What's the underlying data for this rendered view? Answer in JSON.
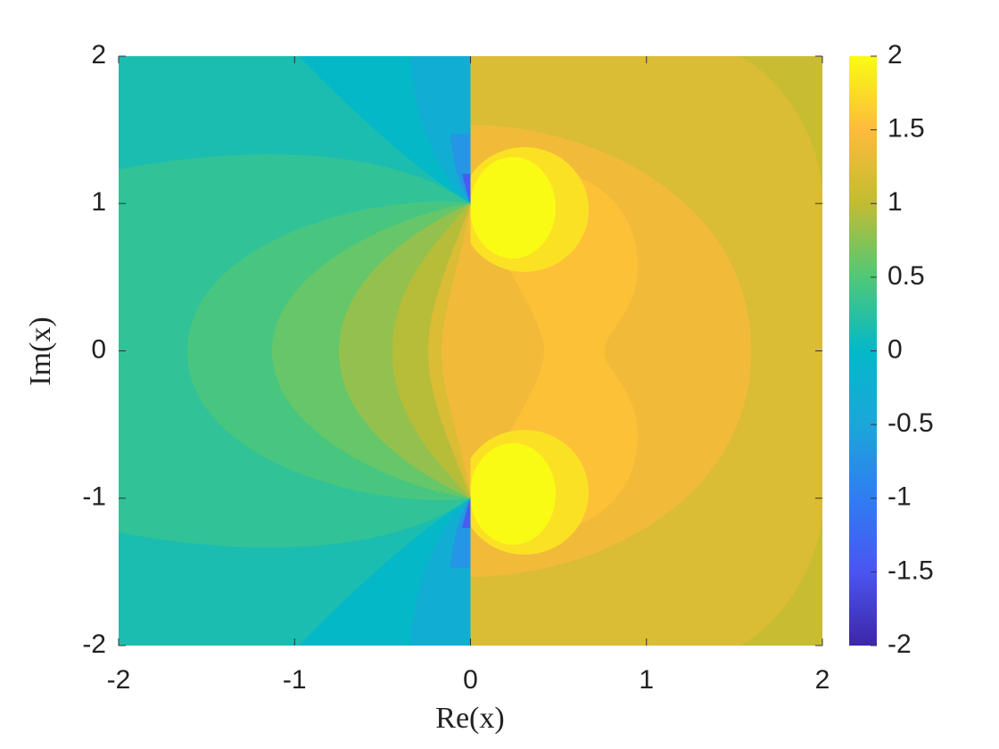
{
  "chart_data": {
    "type": "contourf",
    "xlabel": "Re(x)",
    "ylabel": "Im(x)",
    "xlim": [
      -2,
      2
    ],
    "ylim": [
      -2,
      2
    ],
    "xticks": [
      -2,
      -1,
      0,
      1,
      2
    ],
    "yticks": [
      -2,
      -1,
      0,
      1,
      2
    ],
    "clim": [
      -2,
      2
    ],
    "cticks": [
      -2,
      -1.5,
      -1,
      -0.5,
      0,
      0.5,
      1,
      1.5,
      2
    ],
    "colormap": [
      "#3e26a8",
      "#4a55f0",
      "#2f7df2",
      "#1ca6da",
      "#04b8c8",
      "#4fc878",
      "#c2bc31",
      "#fdbb3b",
      "#f9fb14"
    ],
    "levels": [
      -1.4,
      -0.7,
      -0.3,
      0,
      0.15,
      0.3,
      0.45,
      0.6,
      0.8,
      0.95,
      1.05,
      1.2,
      1.4,
      1.55,
      1.8,
      2
    ],
    "colorbar": true
  }
}
